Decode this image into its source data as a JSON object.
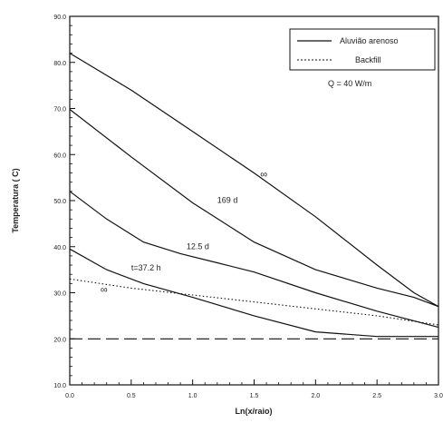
{
  "chart_data": {
    "type": "line",
    "xlabel": "Ln(x/raio)",
    "ylabel": "Temperatura ( C)",
    "xlim": [
      0.0,
      3.0
    ],
    "ylim": [
      10.0,
      90.0
    ],
    "x_ticks": [
      "0.0",
      "0.5",
      "1.0",
      "1.5",
      "2.0",
      "2.5",
      "3.0"
    ],
    "y_ticks": [
      "10.0",
      "20.0",
      "30.0",
      "40.0",
      "50.0",
      "60.0",
      "70.0",
      "80.0",
      "90.0"
    ],
    "legend": {
      "position": "top-right",
      "entries": [
        {
          "label": "Aluvião arenoso",
          "style": "solid"
        },
        {
          "label": "Backfill",
          "style": "dotted"
        }
      ]
    },
    "annotation_q": "Q = 40 W/m",
    "series": [
      {
        "style": "solid",
        "label": "∞",
        "x": [
          0.0,
          0.5,
          1.0,
          1.5,
          2.0,
          2.5,
          2.8,
          3.0
        ],
        "y": [
          82.0,
          74.0,
          65.0,
          56.0,
          46.5,
          36.0,
          30.0,
          27.0
        ]
      },
      {
        "style": "solid",
        "label": "169 d",
        "x": [
          0.0,
          0.5,
          1.0,
          1.5,
          2.0,
          2.5,
          2.8,
          3.0
        ],
        "y": [
          69.8,
          59.5,
          49.5,
          41.0,
          35.0,
          31.0,
          29.0,
          27.0
        ]
      },
      {
        "style": "solid",
        "label": "12.5 d",
        "x": [
          0.0,
          0.3,
          0.6,
          0.9,
          1.2,
          1.5,
          2.0,
          2.5,
          3.0
        ],
        "y": [
          52.0,
          46.0,
          41.0,
          38.5,
          36.5,
          34.5,
          30.0,
          26.0,
          22.5
        ]
      },
      {
        "style": "solid",
        "label": "t=37.2 h",
        "x": [
          0.0,
          0.3,
          0.6,
          1.0,
          1.5,
          2.0,
          2.5,
          3.0
        ],
        "y": [
          39.5,
          35.0,
          32.0,
          29.0,
          25.0,
          21.5,
          20.5,
          20.5
        ]
      },
      {
        "style": "dotted",
        "label": "∞",
        "x": [
          0.0,
          0.5,
          1.0,
          1.5,
          2.0,
          2.5,
          3.0
        ],
        "y": [
          33.0,
          31.0,
          29.5,
          28.0,
          26.5,
          25.0,
          23.0
        ]
      },
      {
        "style": "dashed",
        "label": "",
        "x": [
          0.0,
          1.0,
          2.0,
          3.0
        ],
        "y": [
          20.0,
          20.0,
          20.0,
          20.0
        ]
      }
    ]
  }
}
